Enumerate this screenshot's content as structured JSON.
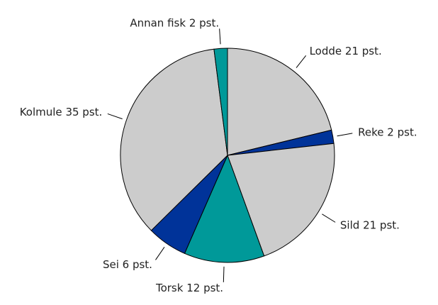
{
  "chart_data": {
    "type": "pie",
    "categories": [
      "Lodde",
      "Reke",
      "Sild",
      "Torsk",
      "Sei",
      "Kolmule",
      "Annan fisk"
    ],
    "values": [
      21,
      2,
      21,
      12,
      6,
      35,
      2
    ],
    "value_labels": [
      "21 pst.",
      "2 pst.",
      "21 pst.",
      "12 pst.",
      "6 pst.",
      "35 pst.",
      "2 pst."
    ],
    "colors": [
      "#cccccc",
      "#003399",
      "#cccccc",
      "#009999",
      "#003399",
      "#cccccc",
      "#009999"
    ]
  }
}
